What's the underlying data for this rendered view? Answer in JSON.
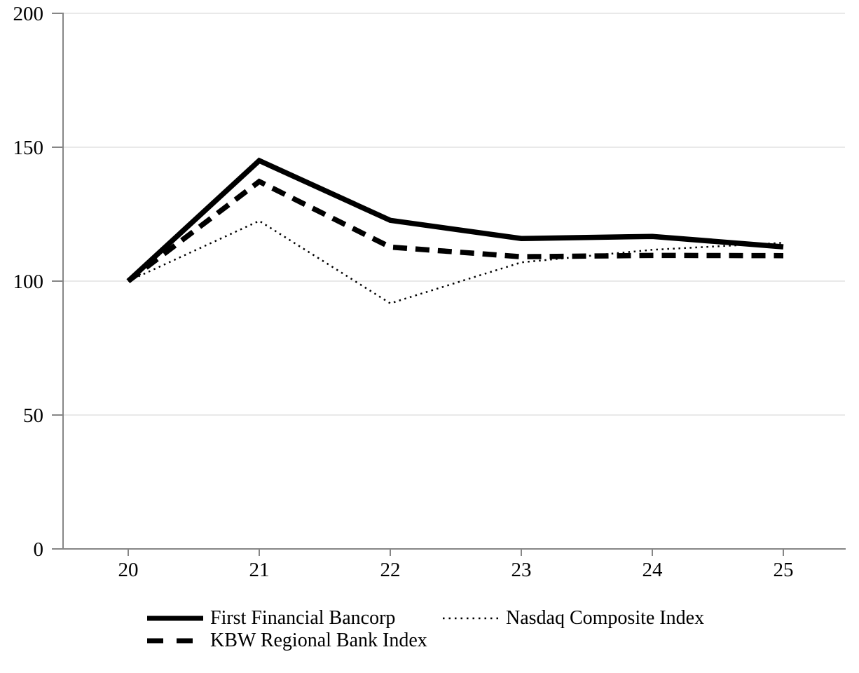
{
  "chart_data": {
    "type": "line",
    "title": "",
    "xlabel": "",
    "ylabel": "",
    "x_tick_labels": [
      "20",
      "21",
      "22",
      "23",
      "24",
      "25"
    ],
    "y_ticks": [
      0,
      50,
      100,
      150,
      200
    ],
    "ylim": [
      0,
      200
    ],
    "grid": "horizontal",
    "legend_position": "bottom",
    "series": [
      {
        "name": "First Financial Bancorp",
        "line_style": "solid",
        "color": "#000000",
        "values": [
          100,
          145,
          122.7,
          115.9,
          116.7,
          112.8
        ]
      },
      {
        "name": "KBW Regional Bank Index",
        "line_style": "dashed",
        "color": "#000000",
        "values": [
          100,
          137.2,
          112.7,
          109.1,
          109.6,
          109.5
        ]
      },
      {
        "name": "Nasdaq Composite Index",
        "line_style": "dotted",
        "color": "#000000",
        "values": [
          100,
          122.5,
          91.7,
          107,
          111.7,
          114.3
        ]
      }
    ],
    "colors": {
      "axis": "#868686",
      "gridline": "#e9e9e9",
      "text": "#000000",
      "background": "#ffffff"
    }
  },
  "legend": {
    "items": [
      {
        "label": "First Financial Bancorp",
        "style": "solid"
      },
      {
        "label": "Nasdaq Composite Index",
        "style": "dotted"
      },
      {
        "label": "KBW Regional Bank Index",
        "style": "dashed"
      }
    ]
  }
}
